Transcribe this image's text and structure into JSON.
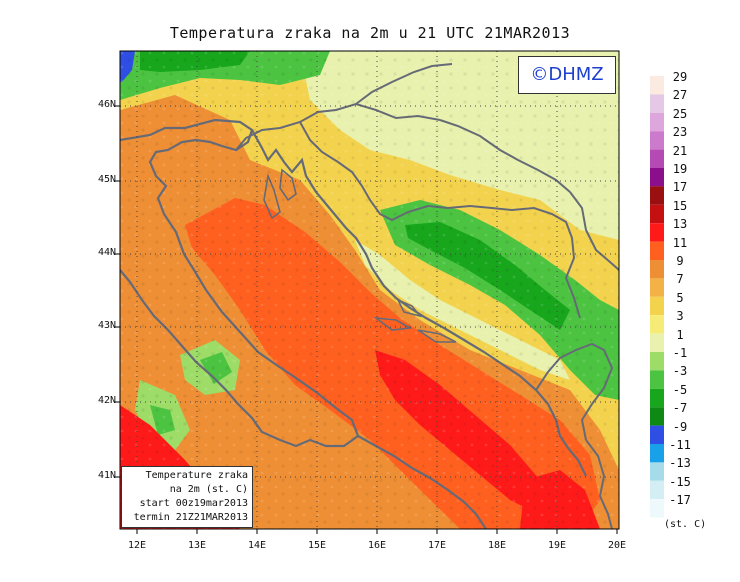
{
  "title": "Temperatura zraka na 2m u 21 UTC 21MAR2013",
  "logo": "©DHMZ",
  "info_box": {
    "line1": "Temperature zraka",
    "line2": "na 2m (st. C)",
    "line3": "start 00z19mar2013",
    "line4": "termin 21Z21MAR2013"
  },
  "map": {
    "lon_labels": [
      "12E",
      "13E",
      "14E",
      "15E",
      "16E",
      "17E",
      "18E",
      "19E",
      "20E"
    ],
    "lat_labels": [
      "46N",
      "45N",
      "44N",
      "43N",
      "42N",
      "41N"
    ]
  },
  "legend": {
    "units": "(st. C)",
    "labels": [
      "29",
      "27",
      "25",
      "23",
      "21",
      "19",
      "17",
      "15",
      "13",
      "11",
      "9",
      "7",
      "5",
      "3",
      "1",
      "-1",
      "-3",
      "-5",
      "-7",
      "-9",
      "-11",
      "-13",
      "-15",
      "-17"
    ],
    "colors": [
      "#fbeadf",
      "#e5c8e5",
      "#dda6dd",
      "#cc7acc",
      "#b54ab5",
      "#8b0f8b",
      "#9a0f0f",
      "#c41010",
      "#ff1a1a",
      "#ff6020",
      "#ef8f35",
      "#f2b245",
      "#f3d34e",
      "#f7eb78",
      "#e8f2ae",
      "#9edc68",
      "#4cc442",
      "#17a61c",
      "#0e8a14",
      "#2f4fe4",
      "#18a0e8",
      "#a6dcea",
      "#d4eff3",
      "#eef9fb"
    ]
  },
  "colors": {
    "sea_warm": "#ff6020",
    "sea_hot": "#ff1a1a",
    "land_mild": "#f3d34e",
    "land_cool": "#e8f2ae",
    "land_cold": "#17a61c",
    "coastline": "#666a77",
    "logo_text": "#1d3fcf"
  }
}
